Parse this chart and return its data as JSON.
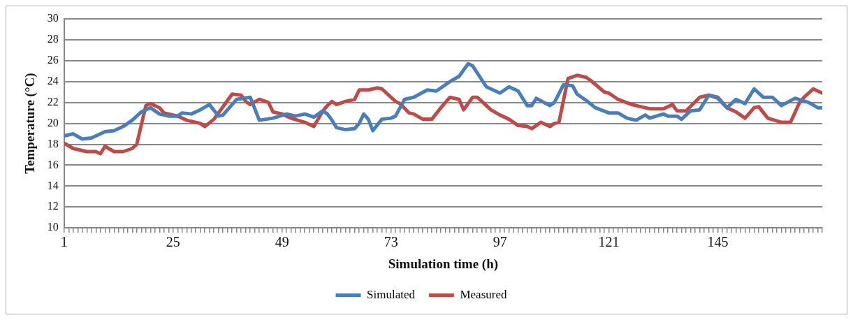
{
  "chart_data": {
    "type": "line",
    "xlabel": "Simulation time (h)",
    "ylabel": "Temperature (°C)",
    "xlim": [
      1,
      168
    ],
    "ylim": [
      10,
      30
    ],
    "yticks": [
      10,
      12,
      14,
      16,
      18,
      20,
      22,
      24,
      26,
      28,
      30
    ],
    "xticks": [
      1,
      {
        "value": 2,
        "label": null
      },
      {
        "value": 3,
        "label": null
      },
      {
        "value": 4,
        "label": null
      },
      {
        "value": 5,
        "label": null
      },
      {
        "value": 6,
        "label": null
      },
      {
        "value": 7,
        "label": null
      },
      {
        "value": 8,
        "label": null
      },
      {
        "value": 9,
        "label": null
      },
      {
        "value": 10,
        "label": null
      },
      {
        "value": 11,
        "label": null
      },
      {
        "value": 12,
        "label": null
      },
      {
        "value": 13,
        "label": null
      },
      {
        "value": 14,
        "label": null
      },
      {
        "value": 15,
        "label": null
      },
      {
        "value": 16,
        "label": null
      },
      {
        "value": 17,
        "label": null
      },
      {
        "value": 18,
        "label": null
      },
      {
        "value": 19,
        "label": null
      },
      {
        "value": 20,
        "label": null
      },
      {
        "value": 21,
        "label": null
      },
      {
        "value": 22,
        "label": null
      },
      {
        "value": 23,
        "label": null
      },
      {
        "value": 24,
        "label": null
      },
      25,
      {
        "value": 26,
        "label": null
      },
      {
        "value": 27,
        "label": null
      },
      {
        "value": 28,
        "label": null
      },
      {
        "value": 29,
        "label": null
      },
      {
        "value": 30,
        "label": null
      },
      {
        "value": 31,
        "label": null
      },
      {
        "value": 32,
        "label": null
      },
      {
        "value": 33,
        "label": null
      },
      {
        "value": 34,
        "label": null
      },
      {
        "value": 35,
        "label": null
      },
      {
        "value": 36,
        "label": null
      },
      {
        "value": 37,
        "label": null
      },
      {
        "value": 38,
        "label": null
      },
      {
        "value": 39,
        "label": null
      },
      {
        "value": 40,
        "label": null
      },
      {
        "value": 41,
        "label": null
      },
      {
        "value": 42,
        "label": null
      },
      {
        "value": 43,
        "label": null
      },
      {
        "value": 44,
        "label": null
      },
      {
        "value": 45,
        "label": null
      },
      {
        "value": 46,
        "label": null
      },
      {
        "value": 47,
        "label": null
      },
      {
        "value": 48,
        "label": null
      },
      49,
      {
        "value": 50,
        "label": null
      },
      {
        "value": 51,
        "label": null
      },
      {
        "value": 52,
        "label": null
      },
      {
        "value": 53,
        "label": null
      },
      {
        "value": 54,
        "label": null
      },
      {
        "value": 55,
        "label": null
      },
      {
        "value": 56,
        "label": null
      },
      {
        "value": 57,
        "label": null
      },
      {
        "value": 58,
        "label": null
      },
      {
        "value": 59,
        "label": null
      },
      {
        "value": 60,
        "label": null
      },
      {
        "value": 61,
        "label": null
      },
      {
        "value": 62,
        "label": null
      },
      {
        "value": 63,
        "label": null
      },
      {
        "value": 64,
        "label": null
      },
      {
        "value": 65,
        "label": null
      },
      {
        "value": 66,
        "label": null
      },
      {
        "value": 67,
        "label": null
      },
      {
        "value": 68,
        "label": null
      },
      {
        "value": 69,
        "label": null
      },
      {
        "value": 70,
        "label": null
      },
      {
        "value": 71,
        "label": null
      },
      {
        "value": 72,
        "label": null
      },
      73,
      {
        "value": 74,
        "label": null
      },
      {
        "value": 75,
        "label": null
      },
      {
        "value": 76,
        "label": null
      },
      {
        "value": 77,
        "label": null
      },
      {
        "value": 78,
        "label": null
      },
      {
        "value": 79,
        "label": null
      },
      {
        "value": 80,
        "label": null
      },
      {
        "value": 81,
        "label": null
      },
      {
        "value": 82,
        "label": null
      },
      {
        "value": 83,
        "label": null
      },
      {
        "value": 84,
        "label": null
      },
      {
        "value": 85,
        "label": null
      },
      {
        "value": 86,
        "label": null
      },
      {
        "value": 87,
        "label": null
      },
      {
        "value": 88,
        "label": null
      },
      {
        "value": 89,
        "label": null
      },
      {
        "value": 90,
        "label": null
      },
      {
        "value": 91,
        "label": null
      },
      {
        "value": 92,
        "label": null
      },
      {
        "value": 93,
        "label": null
      },
      {
        "value": 94,
        "label": null
      },
      {
        "value": 95,
        "label": null
      },
      {
        "value": 96,
        "label": null
      },
      97,
      {
        "value": 98,
        "label": null
      },
      {
        "value": 99,
        "label": null
      },
      {
        "value": 100,
        "label": null
      },
      {
        "value": 101,
        "label": null
      },
      {
        "value": 102,
        "label": null
      },
      {
        "value": 103,
        "label": null
      },
      {
        "value": 104,
        "label": null
      },
      {
        "value": 105,
        "label": null
      },
      {
        "value": 106,
        "label": null
      },
      {
        "value": 107,
        "label": null
      },
      {
        "value": 108,
        "label": null
      },
      {
        "value": 109,
        "label": null
      },
      {
        "value": 110,
        "label": null
      },
      {
        "value": 111,
        "label": null
      },
      {
        "value": 112,
        "label": null
      },
      {
        "value": 113,
        "label": null
      },
      {
        "value": 114,
        "label": null
      },
      {
        "value": 115,
        "label": null
      },
      {
        "value": 116,
        "label": null
      },
      {
        "value": 117,
        "label": null
      },
      {
        "value": 118,
        "label": null
      },
      {
        "value": 119,
        "label": null
      },
      {
        "value": 120,
        "label": null
      },
      121,
      {
        "value": 122,
        "label": null
      },
      {
        "value": 123,
        "label": null
      },
      {
        "value": 124,
        "label": null
      },
      {
        "value": 125,
        "label": null
      },
      {
        "value": 126,
        "label": null
      },
      {
        "value": 127,
        "label": null
      },
      {
        "value": 128,
        "label": null
      },
      {
        "value": 129,
        "label": null
      },
      {
        "value": 130,
        "label": null
      },
      {
        "value": 131,
        "label": null
      },
      {
        "value": 132,
        "label": null
      },
      {
        "value": 133,
        "label": null
      },
      {
        "value": 134,
        "label": null
      },
      {
        "value": 135,
        "label": null
      },
      {
        "value": 136,
        "label": null
      },
      {
        "value": 137,
        "label": null
      },
      {
        "value": 138,
        "label": null
      },
      {
        "value": 139,
        "label": null
      },
      {
        "value": 140,
        "label": null
      },
      {
        "value": 141,
        "label": null
      },
      {
        "value": 142,
        "label": null
      },
      {
        "value": 143,
        "label": null
      },
      {
        "value": 144,
        "label": null
      },
      145,
      {
        "value": 146,
        "label": null
      },
      {
        "value": 147,
        "label": null
      },
      {
        "value": 148,
        "label": null
      },
      {
        "value": 149,
        "label": null
      },
      {
        "value": 150,
        "label": null
      },
      {
        "value": 151,
        "label": null
      },
      {
        "value": 152,
        "label": null
      },
      {
        "value": 153,
        "label": null
      },
      {
        "value": 154,
        "label": null
      },
      {
        "value": 155,
        "label": null
      },
      {
        "value": 156,
        "label": null
      },
      {
        "value": 157,
        "label": null
      },
      {
        "value": 158,
        "label": null
      },
      {
        "value": 159,
        "label": null
      },
      {
        "value": 160,
        "label": null
      },
      {
        "value": 161,
        "label": null
      },
      {
        "value": 162,
        "label": null
      },
      {
        "value": 163,
        "label": null
      },
      {
        "value": 164,
        "label": null
      },
      {
        "value": 165,
        "label": null
      },
      {
        "value": 166,
        "label": null
      },
      {
        "value": 167,
        "label": null
      },
      {
        "value": 168,
        "label": null
      }
    ],
    "grid": "y",
    "legend": "bottom",
    "marker": "none",
    "line_style": "solid",
    "series": [
      {
        "name": "Simulated",
        "color": "#4a7ebb",
        "x": [
          1,
          3,
          5,
          7,
          10,
          12,
          14,
          16,
          18,
          20,
          22,
          24,
          26,
          27,
          29,
          31,
          33,
          35,
          36,
          39,
          42,
          44,
          47,
          50,
          52,
          54,
          56,
          58,
          59,
          60,
          61,
          63,
          65,
          66,
          67,
          68,
          69,
          71,
          73,
          74,
          76,
          78,
          81,
          83,
          86,
          88,
          90,
          91,
          94,
          95,
          97,
          99,
          101,
          103,
          104,
          105,
          108,
          109,
          111,
          113,
          114,
          116,
          118,
          121,
          123,
          125,
          127,
          129,
          130,
          133,
          134,
          136,
          137,
          139,
          141,
          143,
          145,
          147,
          149,
          151,
          153,
          155,
          157,
          159,
          162,
          165,
          167,
          168
        ],
        "values": [
          18.8,
          19.0,
          18.5,
          18.6,
          19.2,
          19.3,
          19.7,
          20.3,
          21.1,
          21.5,
          20.9,
          20.7,
          20.7,
          21.0,
          20.9,
          21.3,
          21.8,
          20.7,
          20.8,
          22.3,
          22.5,
          20.3,
          20.5,
          20.9,
          20.7,
          20.9,
          20.6,
          21.2,
          20.9,
          20.3,
          19.6,
          19.4,
          19.5,
          20.0,
          20.9,
          20.4,
          19.3,
          20.4,
          20.5,
          20.7,
          22.3,
          22.5,
          23.2,
          23.1,
          24.0,
          24.5,
          25.7,
          25.5,
          23.5,
          23.3,
          22.9,
          23.5,
          23.1,
          21.7,
          21.7,
          22.4,
          21.7,
          22.0,
          23.7,
          23.6,
          22.8,
          22.2,
          21.5,
          21.0,
          21.0,
          20.5,
          20.3,
          20.8,
          20.5,
          20.9,
          20.7,
          20.7,
          20.4,
          21.2,
          21.3,
          22.7,
          22.4,
          21.5,
          22.3,
          21.9,
          23.3,
          22.5,
          22.5,
          21.7,
          22.4,
          22.0,
          21.5,
          21.5
        ]
      },
      {
        "name": "Measured",
        "color": "#be4b48",
        "x": [
          1,
          3,
          4,
          6,
          8,
          9,
          10,
          12,
          14,
          16,
          17,
          19,
          20,
          22,
          23,
          26,
          28,
          31,
          32,
          34,
          36,
          38,
          40,
          41,
          42,
          44,
          46,
          47,
          49,
          51,
          54,
          56,
          58,
          59,
          60,
          61,
          63,
          65,
          66,
          68,
          70,
          71,
          74,
          75,
          77,
          78,
          80,
          82,
          84,
          86,
          88,
          89,
          91,
          92,
          95,
          97,
          99,
          101,
          103,
          104,
          106,
          108,
          109,
          110,
          112,
          114,
          116,
          117,
          120,
          121,
          123,
          126,
          128,
          130,
          133,
          135,
          136,
          138,
          141,
          143,
          145,
          147,
          149,
          151,
          153,
          154,
          156,
          159,
          161,
          163,
          164,
          166,
          168
        ],
        "values": [
          18.1,
          17.6,
          17.5,
          17.3,
          17.3,
          17.1,
          17.8,
          17.3,
          17.3,
          17.6,
          18.0,
          21.7,
          21.9,
          21.5,
          21.0,
          20.7,
          20.3,
          20.0,
          19.7,
          20.4,
          21.6,
          22.8,
          22.7,
          22.1,
          21.8,
          22.3,
          22.0,
          21.1,
          20.9,
          20.5,
          20.1,
          19.7,
          21.2,
          21.7,
          22.1,
          21.8,
          22.1,
          22.3,
          23.2,
          23.2,
          23.4,
          23.3,
          22.1,
          21.9,
          21.0,
          20.9,
          20.4,
          20.4,
          21.5,
          22.5,
          22.3,
          21.3,
          22.5,
          22.5,
          21.3,
          20.8,
          20.4,
          19.8,
          19.7,
          19.5,
          20.1,
          19.7,
          20.0,
          20.1,
          24.3,
          24.6,
          24.4,
          24.1,
          23.0,
          22.9,
          22.3,
          21.8,
          21.6,
          21.4,
          21.4,
          21.8,
          21.2,
          21.2,
          22.5,
          22.7,
          22.5,
          21.5,
          21.1,
          20.5,
          21.5,
          21.6,
          20.5,
          20.1,
          20.1,
          22.0,
          22.5,
          23.3,
          22.9
        ]
      }
    ]
  }
}
